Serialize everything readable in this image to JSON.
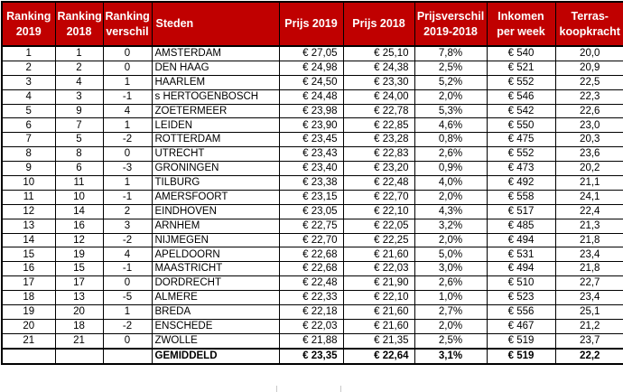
{
  "chart_data": {
    "type": "table",
    "columns": [
      "Ranking 2019",
      "Ranking 2018",
      "Ranking verschil",
      "Steden",
      "Prijs 2019",
      "Prijs 2018",
      "Prijsverschil 2019-2018",
      "Inkomen per week",
      "Terras-koopkracht"
    ],
    "rows": [
      [
        "1",
        "1",
        "0",
        "AMSTERDAM",
        "€ 27,05",
        "€ 25,10",
        "7,8%",
        "€ 540",
        "20,0"
      ],
      [
        "2",
        "2",
        "0",
        "DEN HAAG",
        "€ 24,98",
        "€ 24,38",
        "2,5%",
        "€ 521",
        "20,9"
      ],
      [
        "3",
        "4",
        "1",
        "HAARLEM",
        "€ 24,50",
        "€ 23,30",
        "5,2%",
        "€ 552",
        "22,5"
      ],
      [
        "4",
        "3",
        "-1",
        "s HERTOGENBOSCH",
        "€ 24,48",
        "€ 24,00",
        "2,0%",
        "€ 546",
        "22,3"
      ],
      [
        "5",
        "9",
        "4",
        "ZOETERMEER",
        "€ 23,98",
        "€ 22,78",
        "5,3%",
        "€ 542",
        "22,6"
      ],
      [
        "6",
        "7",
        "1",
        "LEIDEN",
        "€ 23,90",
        "€ 22,85",
        "4,6%",
        "€ 550",
        "23,0"
      ],
      [
        "7",
        "5",
        "-2",
        "ROTTERDAM",
        "€ 23,45",
        "€ 23,28",
        "0,8%",
        "€ 475",
        "20,3"
      ],
      [
        "8",
        "8",
        "0",
        "UTRECHT",
        "€ 23,43",
        "€ 22,83",
        "2,6%",
        "€ 552",
        "23,6"
      ],
      [
        "9",
        "6",
        "-3",
        "GRONINGEN",
        "€ 23,40",
        "€ 23,20",
        "0,9%",
        "€ 473",
        "20,2"
      ],
      [
        "10",
        "11",
        "1",
        "TILBURG",
        "€ 23,38",
        "€ 22,48",
        "4,0%",
        "€ 492",
        "21,1"
      ],
      [
        "11",
        "10",
        "-1",
        "AMERSFOORT",
        "€ 23,15",
        "€ 22,70",
        "2,0%",
        "€ 558",
        "24,1"
      ],
      [
        "12",
        "14",
        "2",
        "EINDHOVEN",
        "€ 23,05",
        "€ 22,10",
        "4,3%",
        "€ 517",
        "22,4"
      ],
      [
        "13",
        "16",
        "3",
        "ARNHEM",
        "€ 22,75",
        "€ 22,05",
        "3,2%",
        "€ 485",
        "21,3"
      ],
      [
        "14",
        "12",
        "-2",
        "NIJMEGEN",
        "€ 22,70",
        "€ 22,25",
        "2,0%",
        "€ 494",
        "21,8"
      ],
      [
        "15",
        "19",
        "4",
        "APELDOORN",
        "€ 22,68",
        "€ 21,60",
        "5,0%",
        "€ 531",
        "23,4"
      ],
      [
        "16",
        "15",
        "-1",
        "MAASTRICHT",
        "€ 22,68",
        "€ 22,03",
        "3,0%",
        "€ 494",
        "21,8"
      ],
      [
        "17",
        "17",
        "0",
        "DORDRECHT",
        "€ 22,48",
        "€ 21,90",
        "2,6%",
        "€ 510",
        "22,7"
      ],
      [
        "18",
        "13",
        "-5",
        "ALMERE",
        "€ 22,33",
        "€ 22,10",
        "1,0%",
        "€ 523",
        "23,4"
      ],
      [
        "19",
        "20",
        "1",
        "BREDA",
        "€ 22,18",
        "€ 21,60",
        "2,7%",
        "€ 556",
        "25,1"
      ],
      [
        "20",
        "18",
        "-2",
        "ENSCHEDE",
        "€ 22,03",
        "€ 21,60",
        "2,0%",
        "€ 467",
        "21,2"
      ],
      [
        "21",
        "21",
        "0",
        "ZWOLLE",
        "€ 21,88",
        "€ 21,35",
        "2,5%",
        "€ 519",
        "23,7"
      ]
    ],
    "footer": [
      "",
      "",
      "",
      "GEMIDDELD",
      "€ 23,35",
      "€ 22,64",
      "3,1%",
      "€ 519",
      "22,2"
    ]
  },
  "colors": {
    "header_bg": "#C00000",
    "header_text": "#FFFFFF",
    "border": "#000000",
    "cell_text": "#000000",
    "cell_bg": "#FFFFFF"
  },
  "layout_hints": {
    "column_alignments": [
      "center",
      "center",
      "center",
      "left",
      "right",
      "right",
      "center",
      "center",
      "center"
    ]
  }
}
